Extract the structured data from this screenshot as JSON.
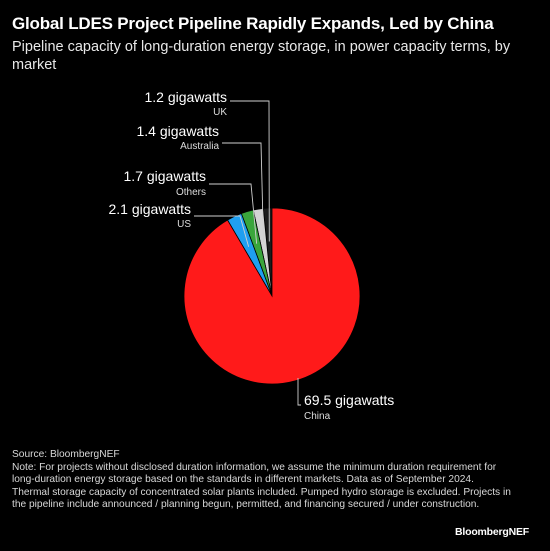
{
  "header": {
    "title": "Global LDES Project Pipeline Rapidly Expands, Led by China",
    "subtitle": "Pipeline capacity of long-duration energy storage, in power capacity terms, by market"
  },
  "chart_data": {
    "type": "pie",
    "title": "Global LDES Project Pipeline Rapidly Expands, Led by China",
    "subtitle": "Pipeline capacity of long-duration energy storage, in power capacity terms, by market",
    "unit": "gigawatts",
    "slices": [
      {
        "label": "UK",
        "value": 1.2,
        "value_label": "1.2 gigawatts",
        "color": "#1c1c1c"
      },
      {
        "label": "Australia",
        "value": 1.4,
        "value_label": "1.4 gigawatts",
        "color": "#d4d4d4"
      },
      {
        "label": "Others",
        "value": 1.7,
        "value_label": "1.7 gigawatts",
        "color": "#3aa63c"
      },
      {
        "label": "US",
        "value": 2.1,
        "value_label": "2.1 gigawatts",
        "color": "#1f9ff0"
      },
      {
        "label": "China",
        "value": 69.5,
        "value_label": "69.5 gigawatts",
        "color": "#ff1a1a"
      }
    ]
  },
  "footer": {
    "source": "Source: BloombergNEF",
    "note": "Note: For projects without disclosed duration information, we assume the minimum duration requirement for long-duration energy storage based on the standards in different markets. Data as of September 2024. Thermal storage capacity of concentrated solar plants included. Pumped hydro storage is excluded. Projects in the pipeline include announced / planning begun, permitted, and financing secured / under construction.",
    "brand": "BloombergNEF"
  }
}
